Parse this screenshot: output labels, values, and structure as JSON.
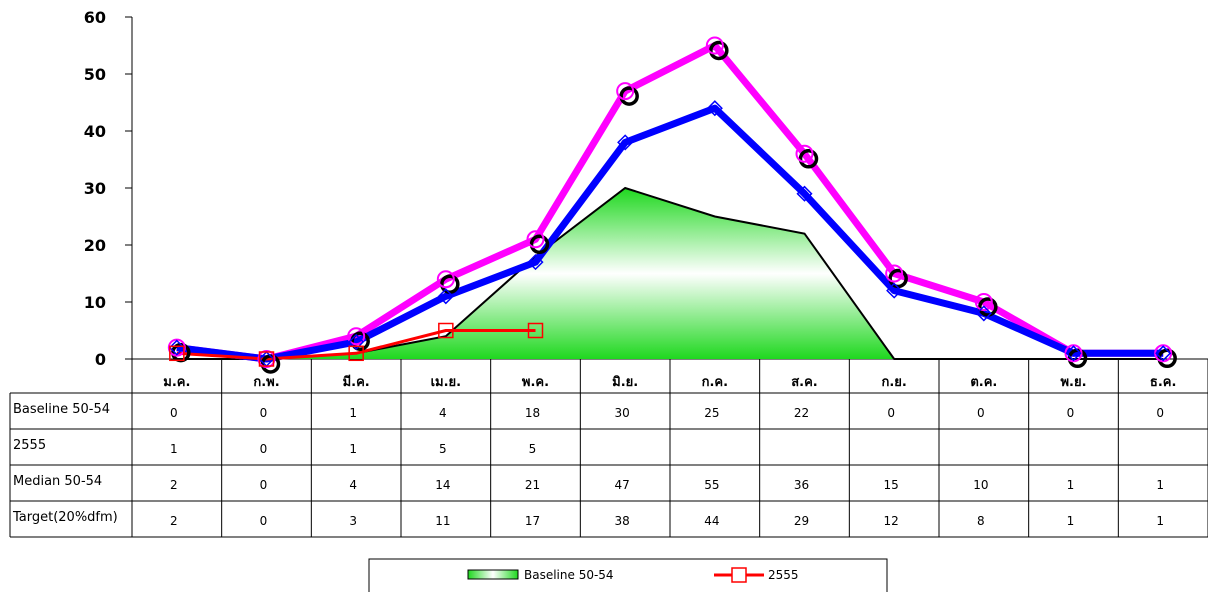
{
  "chart_data": {
    "type": "line",
    "categories": [
      "ม.ค.",
      "ก.พ.",
      "มี.ค.",
      "เม.ย.",
      "พ.ค.",
      "มิ.ย.",
      "ก.ค.",
      "ส.ค.",
      "ก.ย.",
      "ต.ค.",
      "พ.ย.",
      "ธ.ค."
    ],
    "ylim": [
      0,
      60
    ],
    "yticks": [
      0,
      10,
      20,
      30,
      40,
      50,
      60
    ],
    "grid": false,
    "legend_position": "bottom",
    "series": [
      {
        "name": "Baseline 50-54",
        "type": "area",
        "color": "#00c800",
        "values": [
          0,
          0,
          1,
          4,
          18,
          30,
          25,
          22,
          0,
          0,
          0,
          0
        ]
      },
      {
        "name": "2555",
        "type": "line",
        "color": "#ff0000",
        "marker": "square",
        "values": [
          1,
          0,
          1,
          5,
          5,
          null,
          null,
          null,
          null,
          null,
          null,
          null
        ]
      },
      {
        "name": "Median 50-54",
        "type": "line",
        "color": "#ff00ff",
        "marker": "circle",
        "values": [
          2,
          0,
          4,
          14,
          21,
          47,
          55,
          36,
          15,
          10,
          1,
          1
        ]
      },
      {
        "name": "Target(20%dfm)",
        "type": "line",
        "color": "#0000ff",
        "marker": "diamond",
        "values": [
          2,
          0,
          3,
          11,
          17,
          38,
          44,
          29,
          12,
          8,
          1,
          1
        ]
      }
    ],
    "table_rows": [
      {
        "label": "Baseline 50-54",
        "values": [
          "0",
          "0",
          "1",
          "4",
          "18",
          "30",
          "25",
          "22",
          "0",
          "0",
          "0",
          "0"
        ]
      },
      {
        "label": "2555",
        "values": [
          "1",
          "0",
          "1",
          "5",
          "5",
          "",
          "",
          "",
          "",
          "",
          "",
          ""
        ]
      },
      {
        "label": "Median 50-54",
        "values": [
          "2",
          "0",
          "4",
          "14",
          "21",
          "47",
          "55",
          "36",
          "15",
          "10",
          "1",
          "1"
        ]
      },
      {
        "label": "Target(20%dfm)",
        "values": [
          "2",
          "0",
          "3",
          "11",
          "17",
          "38",
          "44",
          "29",
          "12",
          "8",
          "1",
          "1"
        ]
      }
    ],
    "legend": [
      "Baseline 50-54",
      "2555"
    ]
  }
}
